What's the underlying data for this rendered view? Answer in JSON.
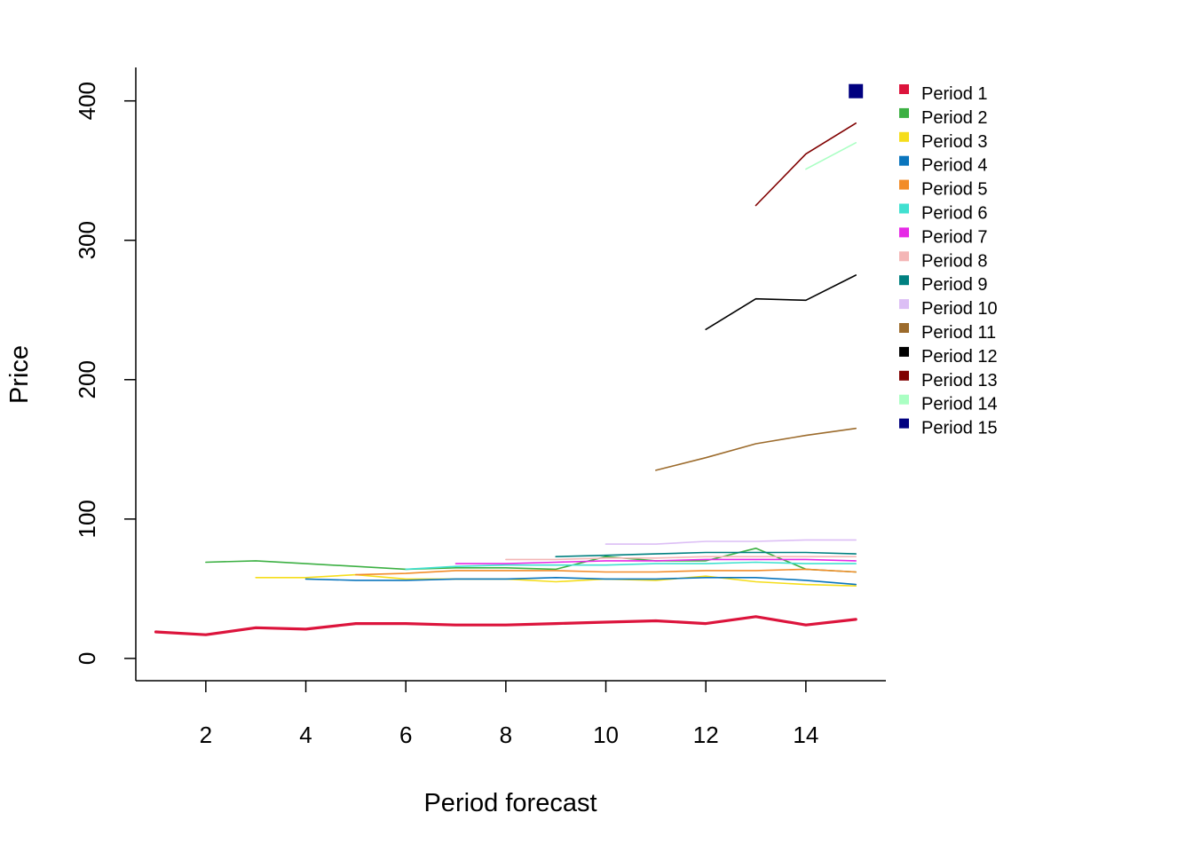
{
  "chart_data": {
    "type": "line",
    "title": "",
    "xlabel": "Period forecast",
    "ylabel": "Price",
    "xlim": [
      0.6,
      15.6
    ],
    "ylim": [
      -16,
      424
    ],
    "xticks": [
      2,
      4,
      6,
      8,
      10,
      12,
      14
    ],
    "yticks": [
      0,
      100,
      200,
      300,
      400
    ],
    "grid": false,
    "legend_position": "top-right outside plot",
    "series": [
      {
        "name": "Period 1",
        "color": "#DC143C",
        "x": [
          1,
          2,
          3,
          4,
          5,
          6,
          7,
          8,
          9,
          10,
          11,
          12,
          13,
          14,
          15
        ],
        "values": [
          19,
          17,
          22,
          21,
          25,
          25,
          24,
          24,
          25,
          26,
          27,
          25,
          30,
          24,
          28
        ]
      },
      {
        "name": "Period 2",
        "color": "#3CB043",
        "x": [
          2,
          3,
          4,
          5,
          6,
          7,
          8,
          9,
          10,
          11,
          12,
          13,
          14,
          15
        ],
        "values": [
          69,
          70,
          68,
          66,
          64,
          65,
          65,
          64,
          73,
          70,
          70,
          79,
          64,
          62
        ]
      },
      {
        "name": "Period 3",
        "color": "#F5DD1B",
        "x": [
          3,
          4,
          5,
          6,
          7,
          8,
          9,
          10,
          11,
          12,
          13,
          14,
          15
        ],
        "values": [
          58,
          58,
          60,
          57,
          57,
          57,
          55,
          57,
          56,
          59,
          55,
          53,
          52
        ]
      },
      {
        "name": "Period 4",
        "color": "#0A75BD",
        "x": [
          4,
          5,
          6,
          7,
          8,
          9,
          10,
          11,
          12,
          13,
          14,
          15
        ],
        "values": [
          57,
          56,
          56,
          57,
          57,
          58,
          57,
          57,
          58,
          58,
          56,
          53
        ]
      },
      {
        "name": "Period 5",
        "color": "#F28C28",
        "x": [
          5,
          6,
          7,
          8,
          9,
          10,
          11,
          12,
          13,
          14,
          15
        ],
        "values": [
          60,
          61,
          63,
          63,
          63,
          62,
          62,
          63,
          63,
          64,
          62
        ]
      },
      {
        "name": "Period 6",
        "color": "#40E0D0",
        "x": [
          6,
          7,
          8,
          9,
          10,
          11,
          12,
          13,
          14,
          15
        ],
        "values": [
          64,
          66,
          67,
          67,
          67,
          68,
          68,
          69,
          68,
          68
        ]
      },
      {
        "name": "Period 7",
        "color": "#E62AE6",
        "x": [
          7,
          8,
          9,
          10,
          11,
          12,
          13,
          14,
          15
        ],
        "values": [
          68,
          68,
          69,
          70,
          70,
          71,
          71,
          71,
          70
        ]
      },
      {
        "name": "Period 8",
        "color": "#F4B6B6",
        "x": [
          8,
          9,
          10,
          11,
          12,
          13,
          14,
          15
        ],
        "values": [
          71,
          71,
          72,
          72,
          73,
          73,
          73,
          73
        ]
      },
      {
        "name": "Period 9",
        "color": "#008080",
        "x": [
          9,
          10,
          11,
          12,
          13,
          14,
          15
        ],
        "values": [
          73,
          74,
          75,
          76,
          76,
          76,
          75
        ]
      },
      {
        "name": "Period 10",
        "color": "#DCBEF5",
        "x": [
          10,
          11,
          12,
          13,
          14,
          15
        ],
        "values": [
          82,
          82,
          84,
          84,
          85,
          85
        ]
      },
      {
        "name": "Period 11",
        "color": "#9C6B2C",
        "x": [
          11,
          12,
          13,
          14,
          15
        ],
        "values": [
          135,
          144,
          154,
          160,
          165
        ]
      },
      {
        "name": "Period 12",
        "color": "#000000",
        "x": [
          12,
          13,
          14,
          15
        ],
        "values": [
          236,
          258,
          257,
          275
        ]
      },
      {
        "name": "Period 13",
        "color": "#800000",
        "x": [
          13,
          14,
          15
        ],
        "values": [
          325,
          362,
          384
        ]
      },
      {
        "name": "Period 14",
        "color": "#AAFFC3",
        "x": [
          14,
          15
        ],
        "values": [
          351,
          370
        ]
      },
      {
        "name": "Period 15",
        "color": "#000080",
        "x": [
          15
        ],
        "values": [
          407
        ]
      }
    ]
  }
}
